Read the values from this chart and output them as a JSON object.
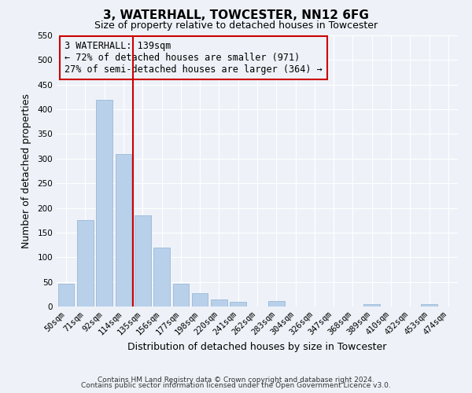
{
  "title": "3, WATERHALL, TOWCESTER, NN12 6FG",
  "subtitle": "Size of property relative to detached houses in Towcester",
  "xlabel": "Distribution of detached houses by size in Towcester",
  "ylabel": "Number of detached properties",
  "categories": [
    "50sqm",
    "71sqm",
    "92sqm",
    "114sqm",
    "135sqm",
    "156sqm",
    "177sqm",
    "198sqm",
    "220sqm",
    "241sqm",
    "262sqm",
    "283sqm",
    "304sqm",
    "326sqm",
    "347sqm",
    "368sqm",
    "389sqm",
    "410sqm",
    "432sqm",
    "453sqm",
    "474sqm"
  ],
  "values": [
    47,
    176,
    420,
    309,
    185,
    120,
    46,
    27,
    14,
    10,
    0,
    11,
    0,
    0,
    0,
    0,
    4,
    0,
    0,
    5,
    0
  ],
  "bar_color": "#b8d0ea",
  "bar_edge_color": "#9ab8d8",
  "ylim": [
    0,
    550
  ],
  "yticks": [
    0,
    50,
    100,
    150,
    200,
    250,
    300,
    350,
    400,
    450,
    500,
    550
  ],
  "vline_x": 3.5,
  "vline_color": "#cc0000",
  "annotation_line1": "3 WATERHALL: 139sqm",
  "annotation_line2": "← 72% of detached houses are smaller (971)",
  "annotation_line3": "27% of semi-detached houses are larger (364) →",
  "box_edge_color": "#cc0000",
  "footer_line1": "Contains HM Land Registry data © Crown copyright and database right 2024.",
  "footer_line2": "Contains public sector information licensed under the Open Government Licence v3.0.",
  "background_color": "#eef2f8",
  "grid_color": "#ffffff",
  "title_fontsize": 11,
  "subtitle_fontsize": 9,
  "axis_label_fontsize": 9,
  "tick_fontsize": 7.5,
  "footer_fontsize": 6.5,
  "annotation_fontsize": 8.5
}
